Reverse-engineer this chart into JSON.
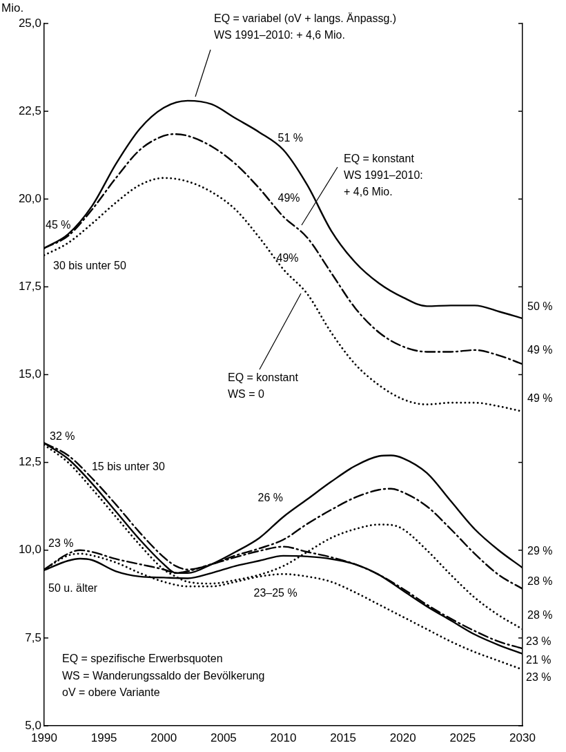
{
  "chart_data": {
    "type": "line",
    "ylabel": "Mio.",
    "xlim": [
      1990,
      2030
    ],
    "xticks": [
      1990,
      1995,
      2000,
      2005,
      2010,
      2015,
      2020,
      2025,
      2030
    ],
    "ylim": [
      5,
      25
    ],
    "yticks": [
      {
        "value": 5,
        "label": "5,0"
      },
      {
        "value": 7.5,
        "label": "7,5"
      },
      {
        "value": 10,
        "label": "10,0"
      },
      {
        "value": 12.5,
        "label": "12,5"
      },
      {
        "value": 15,
        "label": "15,0"
      },
      {
        "value": 17.5,
        "label": "17,5"
      },
      {
        "value": 20,
        "label": "20,0"
      },
      {
        "value": 22.5,
        "label": "22,5"
      },
      {
        "value": 25,
        "label": "25,0"
      }
    ],
    "series": [
      {
        "color": "#000000",
        "line_style": "solid",
        "x": [
          1990,
          1992,
          1994,
          1996,
          1998,
          2000,
          2002,
          2004,
          2006,
          2008,
          2010,
          2012,
          2014,
          2016,
          2018,
          2020,
          2022,
          2024,
          2026,
          2028,
          2030
        ],
        "values": [
          18.6,
          19.0,
          19.8,
          21.0,
          22.0,
          22.6,
          22.8,
          22.7,
          22.3,
          21.9,
          21.4,
          20.4,
          19.1,
          18.2,
          17.6,
          17.2,
          16.95,
          16.97,
          16.97,
          16.8,
          16.6
        ]
      },
      {
        "color": "#000000",
        "line_style": "dashed",
        "x": [
          1990,
          1992,
          1994,
          1996,
          1998,
          2000,
          2001,
          2002,
          2004,
          2006,
          2008,
          2010,
          2012,
          2014,
          2016,
          2018,
          2020,
          2022,
          2024,
          2026,
          2028,
          2030
        ],
        "values": [
          18.6,
          18.95,
          19.7,
          20.6,
          21.4,
          21.8,
          21.85,
          21.8,
          21.5,
          21.0,
          20.3,
          19.5,
          18.9,
          17.9,
          16.9,
          16.2,
          15.8,
          15.65,
          15.65,
          15.7,
          15.55,
          15.3
        ]
      },
      {
        "color": "#000000",
        "line_style": "dotted",
        "x": [
          1990,
          1992,
          1994,
          1996,
          1998,
          2000,
          2002,
          2004,
          2006,
          2008,
          2010,
          2012,
          2014,
          2016,
          2018,
          2020,
          2022,
          2024,
          2026,
          2028,
          2030
        ],
        "values": [
          18.4,
          18.75,
          19.3,
          19.9,
          20.4,
          20.6,
          20.5,
          20.2,
          19.7,
          18.9,
          18.0,
          17.3,
          16.2,
          15.3,
          14.7,
          14.3,
          14.15,
          14.2,
          14.2,
          14.1,
          13.95
        ]
      },
      {
        "color": "#000000",
        "line_style": "solid",
        "x": [
          1990,
          1992,
          1994,
          1996,
          1998,
          2000,
          2001,
          2002,
          2004,
          2006,
          2008,
          2010,
          2012,
          2014,
          2016,
          2018,
          2019,
          2020,
          2022,
          2024,
          2026,
          2028,
          2030
        ],
        "values": [
          13.05,
          12.6,
          11.9,
          11.1,
          10.3,
          9.6,
          9.35,
          9.35,
          9.6,
          9.95,
          10.35,
          10.95,
          11.45,
          11.95,
          12.4,
          12.68,
          12.7,
          12.62,
          12.2,
          11.4,
          10.6,
          10.0,
          9.5
        ]
      },
      {
        "color": "#000000",
        "line_style": "dashed",
        "x": [
          1990,
          1992,
          1994,
          1996,
          1998,
          2000,
          2001,
          2002,
          2004,
          2006,
          2008,
          2010,
          2012,
          2014,
          2016,
          2018,
          2019,
          2020,
          2022,
          2024,
          2026,
          2028,
          2030
        ],
        "values": [
          13.05,
          12.7,
          12.05,
          11.3,
          10.5,
          9.8,
          9.55,
          9.45,
          9.6,
          9.85,
          10.05,
          10.3,
          10.75,
          11.15,
          11.5,
          11.72,
          11.75,
          11.65,
          11.25,
          10.6,
          9.9,
          9.3,
          8.9
        ]
      },
      {
        "color": "#000000",
        "line_style": "dotted",
        "x": [
          1990,
          1992,
          1994,
          1996,
          1998,
          2000,
          2001,
          2002,
          2004,
          2006,
          2008,
          2010,
          2012,
          2014,
          2016,
          2018,
          2019,
          2020,
          2022,
          2024,
          2026,
          2028,
          2030
        ],
        "values": [
          13.0,
          12.5,
          11.75,
          10.95,
          10.15,
          9.45,
          9.25,
          9.1,
          9.05,
          9.15,
          9.3,
          9.55,
          9.95,
          10.35,
          10.6,
          10.73,
          10.72,
          10.6,
          10.0,
          9.3,
          8.65,
          8.15,
          7.75
        ]
      },
      {
        "color": "#000000",
        "line_style": "solid",
        "x": [
          1990,
          1992,
          1993,
          1994,
          1996,
          1998,
          2000,
          2002,
          2004,
          2006,
          2008,
          2010,
          2012,
          2014,
          2016,
          2018,
          2020,
          2022,
          2024,
          2026,
          2028,
          2030
        ],
        "values": [
          9.43,
          9.7,
          9.76,
          9.72,
          9.4,
          9.25,
          9.22,
          9.2,
          9.35,
          9.55,
          9.7,
          9.84,
          9.82,
          9.75,
          9.6,
          9.3,
          8.85,
          8.4,
          8.0,
          7.6,
          7.3,
          7.05
        ]
      },
      {
        "color": "#000000",
        "line_style": "dashed",
        "x": [
          1990,
          1992,
          1993,
          1994,
          1996,
          1998,
          2000,
          2001,
          2002,
          2004,
          2006,
          2008,
          2010,
          2012,
          2014,
          2016,
          2018,
          2020,
          2022,
          2024,
          2026,
          2028,
          2030
        ],
        "values": [
          9.45,
          9.9,
          10.0,
          9.95,
          9.75,
          9.6,
          9.45,
          9.35,
          9.4,
          9.6,
          9.8,
          9.98,
          10.1,
          9.95,
          9.8,
          9.6,
          9.3,
          8.9,
          8.45,
          8.05,
          7.7,
          7.4,
          7.2
        ]
      },
      {
        "color": "#000000",
        "line_style": "dotted",
        "x": [
          1990,
          1992,
          1993,
          1994,
          1996,
          1998,
          2000,
          2002,
          2004,
          2006,
          2008,
          2010,
          2012,
          2014,
          2016,
          2018,
          2020,
          2022,
          2024,
          2026,
          2028,
          2030
        ],
        "values": [
          9.45,
          9.85,
          9.9,
          9.85,
          9.65,
          9.35,
          9.1,
          8.97,
          8.97,
          9.1,
          9.25,
          9.32,
          9.25,
          9.1,
          8.8,
          8.45,
          8.1,
          7.75,
          7.4,
          7.1,
          6.85,
          6.6
        ]
      }
    ],
    "annotations": [
      "EQ = variabel (oV + langs. Änpassg.)\nWS 1991–2010: + 4,6 Mio.",
      "EQ = konstant\nWS 1991–2010:\n+ 4,6 Mio.",
      "EQ = konstant\nWS = 0",
      {
        "text": "45 %",
        "x": 1990,
        "y": 18.6
      },
      {
        "text": "30 bis unter 50",
        "x": 1990,
        "y": 18.4
      },
      {
        "text": "51 %",
        "x": 2010,
        "y": 21.4
      },
      {
        "text": "49%",
        "x": 2010,
        "y": 19.5
      },
      {
        "text": "49%",
        "x": 2010,
        "y": 18.0
      },
      {
        "text": "50 %",
        "x": 2030,
        "y": 16.6
      },
      {
        "text": "49 %",
        "x": 2030,
        "y": 15.3
      },
      {
        "text": "49 %",
        "x": 2030,
        "y": 13.95
      },
      {
        "text": "32 %",
        "x": 1990,
        "y": 13.05
      },
      {
        "text": "15 bis unter 30",
        "x": 1993,
        "y": 12.3
      },
      {
        "text": "23 %",
        "x": 1990,
        "y": 9.45
      },
      {
        "text": "50 u. älter",
        "x": 1990,
        "y": 9.43
      },
      {
        "text": "26 %",
        "x": 2010,
        "y": 10.95
      },
      {
        "text": "23–25 %",
        "x": 2010,
        "y": 9.3
      },
      {
        "text": "29 %",
        "x": 2030,
        "y": 9.5
      },
      {
        "text": "28 %",
        "x": 2030,
        "y": 8.9
      },
      {
        "text": "28 %",
        "x": 2030,
        "y": 7.75
      },
      {
        "text": "23 %",
        "x": 2030,
        "y": 7.2
      },
      {
        "text": "21 %",
        "x": 2030,
        "y": 7.05
      },
      {
        "text": "23 %",
        "x": 2030,
        "y": 6.6
      },
      "EQ = spezifische Erwerbsquoten",
      "WS = Wanderungssaldo der Bevölkerung",
      "oV = obere Variante"
    ]
  }
}
